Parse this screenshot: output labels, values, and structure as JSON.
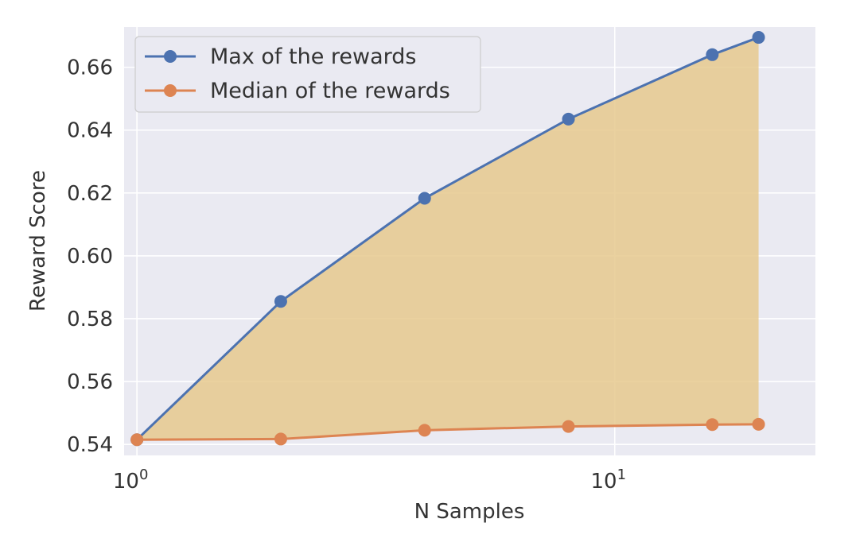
{
  "chart_data": {
    "type": "line",
    "xlabel": "N Samples",
    "ylabel": "Reward Score",
    "x_scale": "log",
    "x": [
      1,
      2,
      4,
      8,
      16,
      20
    ],
    "xlim": [
      0.94,
      26.3
    ],
    "ylim": [
      0.5365,
      0.6728
    ],
    "x_ticks": [
      {
        "value": 1,
        "base": "10",
        "exp": "0"
      },
      {
        "value": 10,
        "base": "10",
        "exp": "1"
      }
    ],
    "y_ticks": [
      0.54,
      0.56,
      0.58,
      0.6,
      0.62,
      0.64,
      0.66
    ],
    "y_tick_labels": [
      "0.54",
      "0.56",
      "0.58",
      "0.60",
      "0.62",
      "0.64",
      "0.66"
    ],
    "grid": true,
    "legend_position": "top-left",
    "fill_between": {
      "series": [
        0,
        1
      ],
      "color": "#e6c98e"
    },
    "series": [
      {
        "name": "Max of the rewards",
        "color": "#4c72b0",
        "values": [
          0.5415,
          0.5855,
          0.6183,
          0.6435,
          0.664,
          0.6695
        ]
      },
      {
        "name": "Median of the rewards",
        "color": "#dd8452",
        "values": [
          0.5415,
          0.5417,
          0.5445,
          0.5457,
          0.5463,
          0.5464
        ]
      }
    ],
    "colors": {
      "plot_bg": "#eaeaf2",
      "grid": "#ffffff",
      "fill": "#e6c98e",
      "text": "#333333"
    }
  }
}
